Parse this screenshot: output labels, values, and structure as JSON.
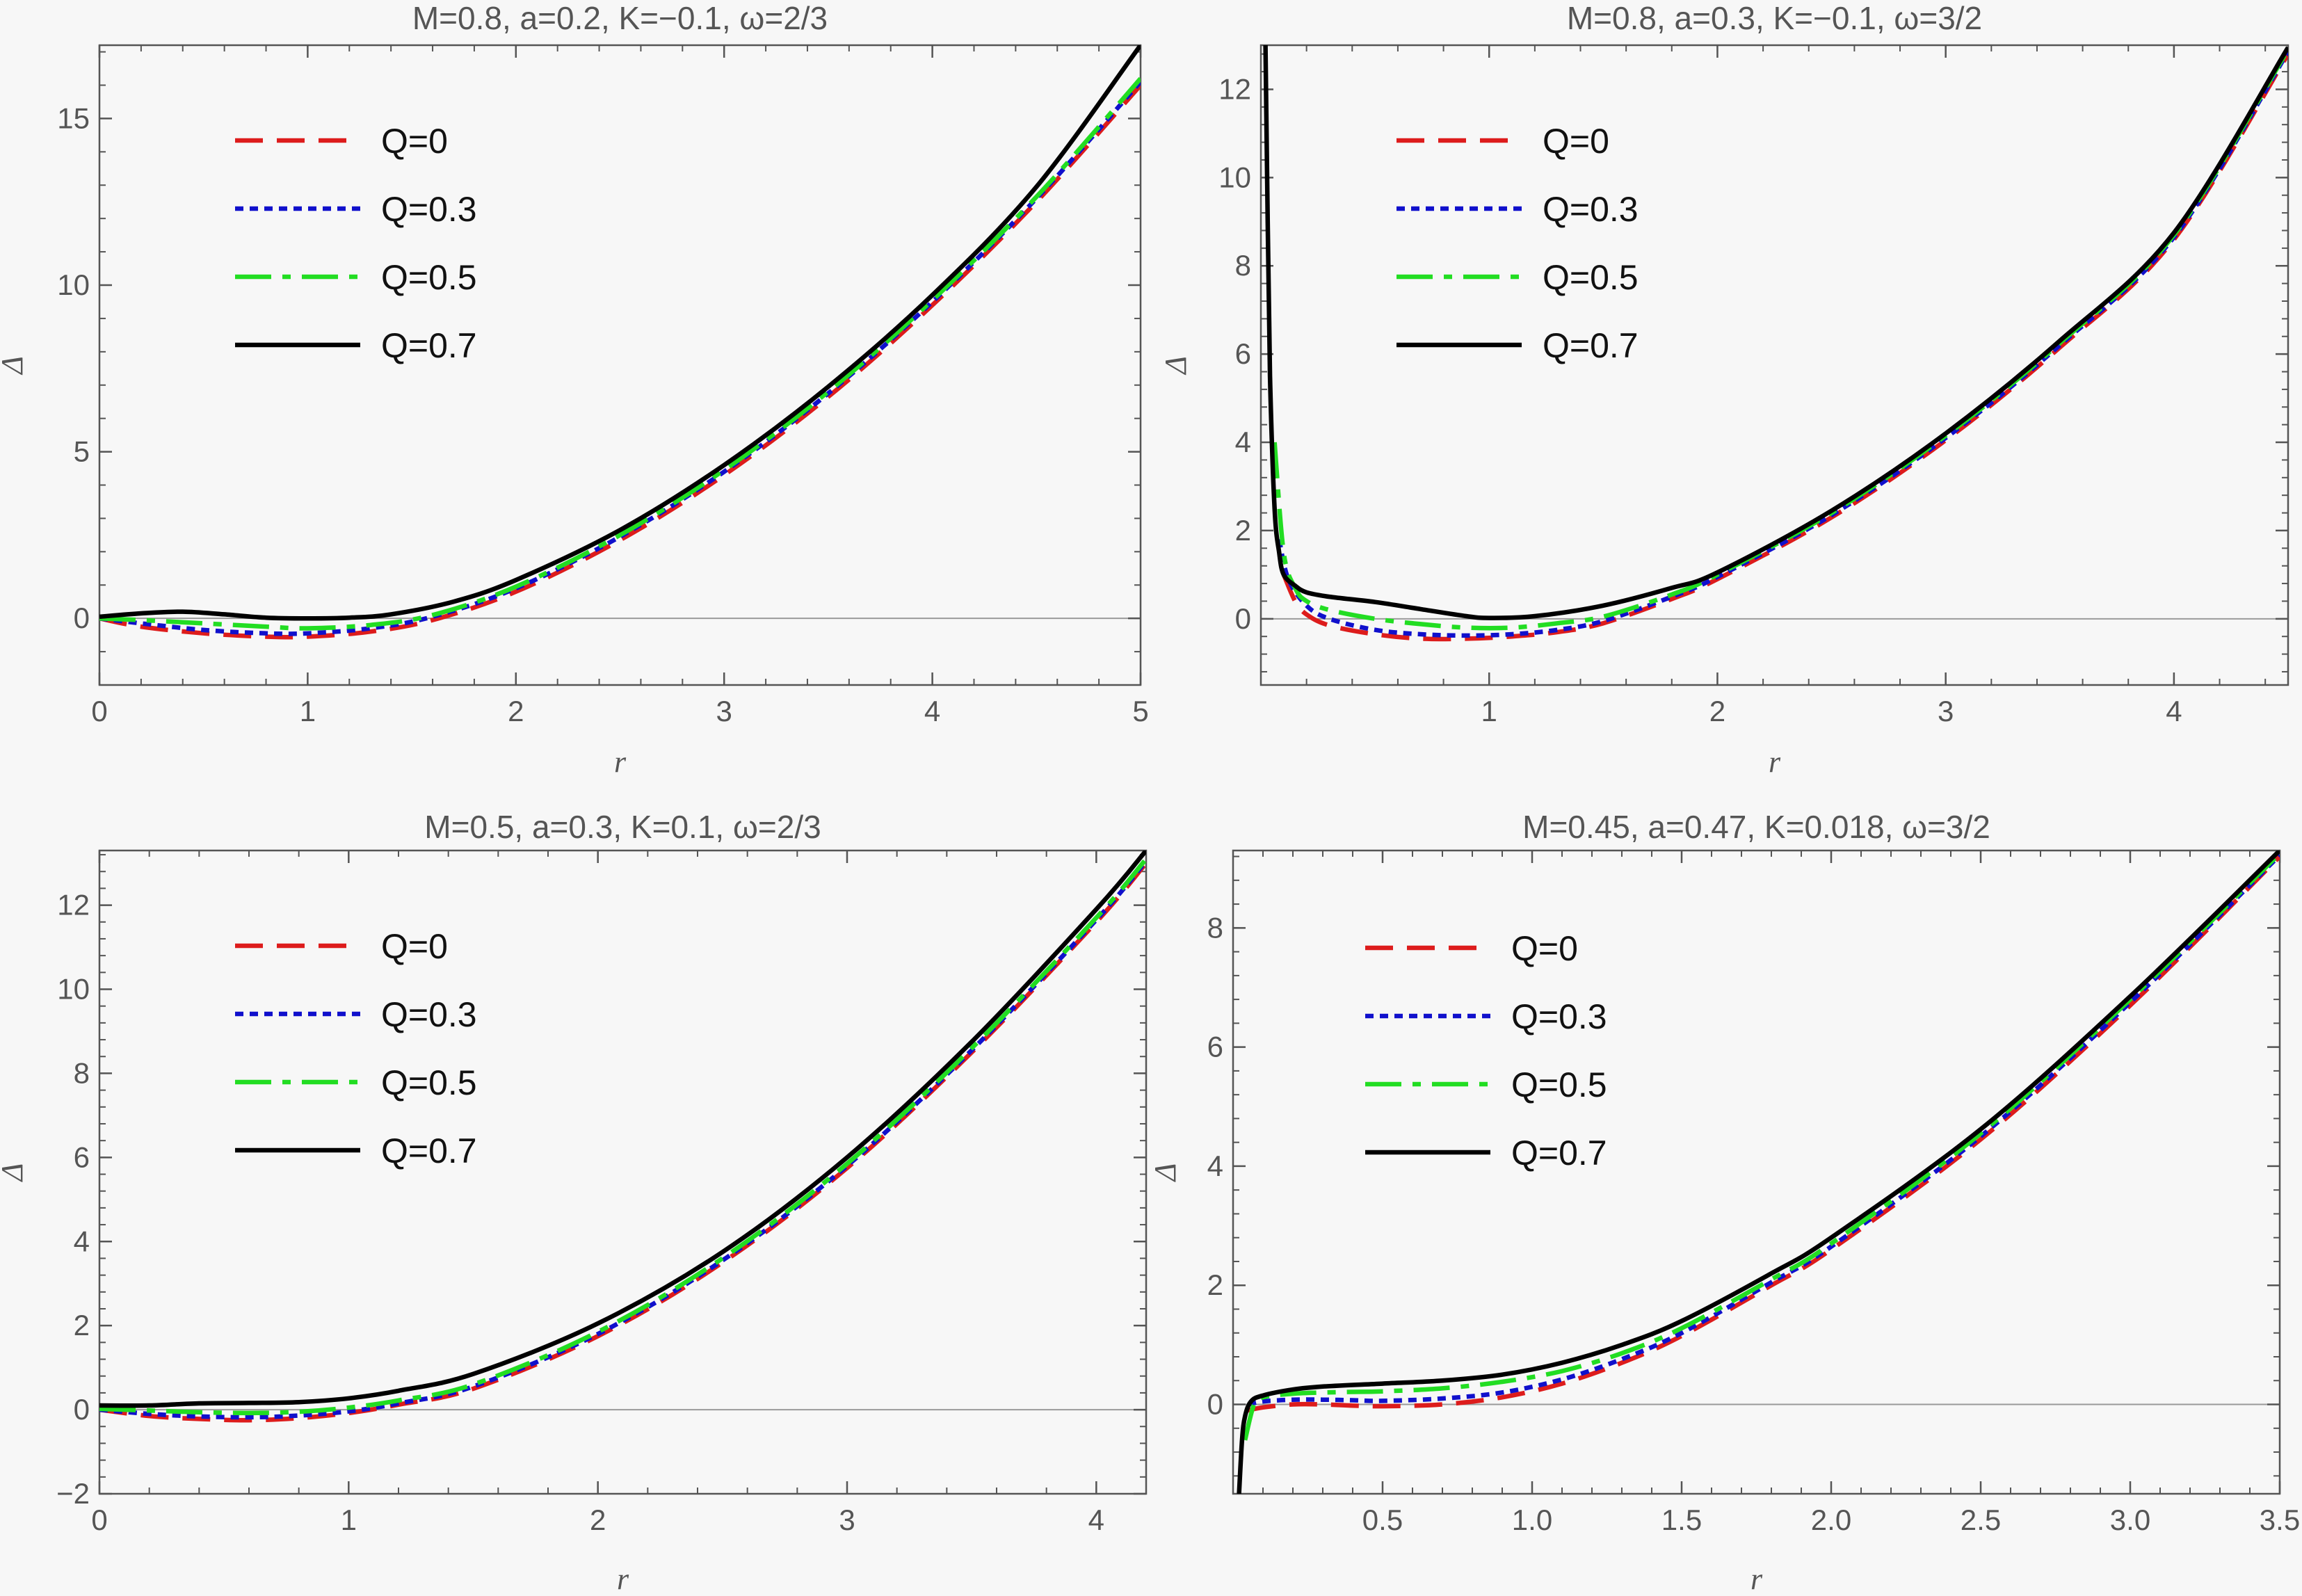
{
  "chart_data": [
    {
      "type": "line",
      "title": "M=0.8, a=0.2, K=−0.1, ω=2/3",
      "xlabel": "r",
      "ylabel": "Δ",
      "xlim": [
        0,
        5
      ],
      "ylim": [
        -2,
        17.2
      ],
      "xticks": [
        0,
        1,
        2,
        3,
        4,
        5
      ],
      "xtick_labels": [
        "0",
        "1",
        "2",
        "3",
        "4",
        "5"
      ],
      "yticks": [
        0,
        5,
        10,
        15
      ],
      "ytick_labels": [
        "0",
        "5",
        "10",
        "15"
      ],
      "legend_position": "top-left",
      "series": [
        {
          "name": "Q=0",
          "x": [
            0,
            0.2,
            0.5,
            0.8,
            1.0,
            1.3,
            1.6,
            2.0,
            2.5,
            3.0,
            3.5,
            4.0,
            4.5,
            5.0
          ],
          "values": [
            0,
            -0.25,
            -0.45,
            -0.55,
            -0.55,
            -0.4,
            -0.05,
            0.8,
            2.35,
            4.3,
            6.65,
            9.4,
            12.5,
            16.0
          ]
        },
        {
          "name": "Q=0.3",
          "x": [
            0,
            0.2,
            0.5,
            0.8,
            1.0,
            1.3,
            1.6,
            2.0,
            2.5,
            3.0,
            3.5,
            4.0,
            4.5,
            5.0
          ],
          "values": [
            0,
            -0.15,
            -0.35,
            -0.45,
            -0.45,
            -0.3,
            0.05,
            0.9,
            2.45,
            4.4,
            6.75,
            9.5,
            12.6,
            16.1
          ]
        },
        {
          "name": "Q=0.5",
          "x": [
            0,
            0.2,
            0.5,
            0.8,
            1.0,
            1.3,
            1.6,
            2.0,
            2.5,
            3.0,
            3.5,
            4.0,
            4.5,
            5.0
          ],
          "values": [
            0,
            -0.05,
            -0.15,
            -0.25,
            -0.3,
            -0.2,
            0.1,
            0.95,
            2.5,
            4.45,
            6.8,
            9.55,
            12.65,
            16.2
          ]
        },
        {
          "name": "Q=0.7",
          "x": [
            0,
            0.2,
            0.4,
            0.6,
            0.8,
            1.0,
            1.2,
            1.4,
            1.7,
            2.0,
            2.5,
            3.0,
            3.5,
            4.0,
            4.5,
            5.0
          ],
          "values": [
            0.05,
            0.15,
            0.2,
            0.12,
            0.02,
            0.0,
            0.02,
            0.12,
            0.5,
            1.15,
            2.65,
            4.6,
            6.95,
            9.7,
            12.95,
            17.2
          ]
        }
      ]
    },
    {
      "type": "line",
      "title": "M=0.8, a=0.3, K=−0.1, ω=3/2",
      "xlabel": "r",
      "ylabel": "Δ",
      "xlim": [
        0,
        4.5
      ],
      "ylim": [
        -1.5,
        13
      ],
      "xticks": [
        1,
        2,
        3,
        4
      ],
      "xtick_labels": [
        "1",
        "2",
        "3",
        "4"
      ],
      "yticks": [
        0,
        2,
        4,
        6,
        8,
        10,
        12
      ],
      "ytick_labels": [
        "0",
        "2",
        "4",
        "6",
        "8",
        "10",
        "12"
      ],
      "legend_position": "top-left",
      "series": [
        {
          "name": "Q=0",
          "x": [
            0.1,
            0.15,
            0.2,
            0.3,
            0.5,
            0.7,
            0.9,
            1.1,
            1.3,
            1.5,
            1.8,
            2.0,
            2.5,
            3.0,
            3.5,
            4.0,
            4.5
          ],
          "values": [
            1.0,
            0.4,
            0.1,
            -0.15,
            -0.35,
            -0.45,
            -0.45,
            -0.4,
            -0.3,
            -0.1,
            0.45,
            0.9,
            2.3,
            4.05,
            6.15,
            8.6,
            12.8
          ]
        },
        {
          "name": "Q=0.3",
          "x": [
            0.08,
            0.12,
            0.2,
            0.3,
            0.5,
            0.7,
            0.9,
            1.1,
            1.3,
            1.5,
            1.8,
            2.0,
            2.5,
            3.0,
            3.5,
            4.0,
            4.5
          ],
          "values": [
            1.8,
            0.9,
            0.3,
            0.0,
            -0.25,
            -0.35,
            -0.38,
            -0.35,
            -0.25,
            -0.05,
            0.5,
            0.95,
            2.35,
            4.1,
            6.2,
            8.65,
            12.85
          ]
        },
        {
          "name": "Q=0.5",
          "x": [
            0.06,
            0.1,
            0.15,
            0.2,
            0.3,
            0.5,
            0.7,
            0.9,
            1.1,
            1.3,
            1.5,
            1.8,
            2.0,
            2.5,
            3.0,
            3.5,
            4.0,
            4.5
          ],
          "values": [
            4.0,
            1.5,
            0.7,
            0.4,
            0.2,
            0.0,
            -0.12,
            -0.2,
            -0.2,
            -0.1,
            0.05,
            0.55,
            1.0,
            2.4,
            4.15,
            6.25,
            8.7,
            12.9
          ]
        },
        {
          "name": "Q=0.7",
          "x": [
            0.02,
            0.03,
            0.04,
            0.06,
            0.08,
            0.1,
            0.15,
            0.2,
            0.3,
            0.5,
            0.7,
            0.9,
            1.0,
            1.2,
            1.5,
            1.8,
            2.0,
            2.5,
            3.0,
            3.5,
            4.0,
            4.5
          ],
          "values": [
            13,
            9.0,
            5.5,
            2.5,
            1.5,
            1.0,
            0.75,
            0.6,
            0.5,
            0.38,
            0.22,
            0.06,
            0.02,
            0.06,
            0.3,
            0.7,
            1.05,
            2.45,
            4.2,
            6.3,
            8.75,
            12.95
          ]
        }
      ]
    },
    {
      "type": "line",
      "title": "M=0.5, a=0.3, K=0.1, ω=2/3",
      "xlabel": "r",
      "ylabel": "Δ",
      "xlim": [
        0,
        4.2
      ],
      "ylim": [
        -2,
        13.3
      ],
      "xticks": [
        0,
        1,
        2,
        3,
        4
      ],
      "xtick_labels": [
        "0",
        "1",
        "2",
        "3",
        "4"
      ],
      "yticks": [
        -2,
        0,
        2,
        4,
        6,
        8,
        10,
        12
      ],
      "ytick_labels": [
        "−2",
        "0",
        "2",
        "4",
        "6",
        "8",
        "10",
        "12"
      ],
      "legend_position": "top-left",
      "series": [
        {
          "name": "Q=0",
          "x": [
            0,
            0.2,
            0.4,
            0.6,
            0.8,
            1.0,
            1.2,
            1.5,
            2.0,
            2.5,
            3.0,
            3.5,
            4.0,
            4.2
          ],
          "values": [
            0.0,
            -0.15,
            -0.22,
            -0.25,
            -0.2,
            -0.08,
            0.12,
            0.5,
            1.75,
            3.5,
            5.75,
            8.5,
            11.6,
            13.0
          ]
        },
        {
          "name": "Q=0.3",
          "x": [
            0,
            0.2,
            0.4,
            0.6,
            0.8,
            1.0,
            1.2,
            1.5,
            2.0,
            2.5,
            3.0,
            3.5,
            4.0,
            4.2
          ],
          "values": [
            0.0,
            -0.1,
            -0.16,
            -0.18,
            -0.14,
            -0.04,
            0.15,
            0.55,
            1.8,
            3.55,
            5.8,
            8.55,
            11.65,
            13.05
          ]
        },
        {
          "name": "Q=0.5",
          "x": [
            0,
            0.2,
            0.4,
            0.6,
            0.8,
            1.0,
            1.2,
            1.5,
            2.0,
            2.5,
            3.0,
            3.5,
            4.0,
            4.2
          ],
          "values": [
            0.02,
            -0.02,
            -0.06,
            -0.08,
            -0.05,
            0.05,
            0.22,
            0.6,
            1.85,
            3.6,
            5.85,
            8.6,
            11.7,
            13.1
          ]
        },
        {
          "name": "Q=0.7",
          "x": [
            0,
            0.2,
            0.4,
            0.6,
            0.8,
            1.0,
            1.2,
            1.5,
            2.0,
            2.5,
            3.0,
            3.5,
            4.0,
            4.2
          ],
          "values": [
            0.1,
            0.1,
            0.15,
            0.16,
            0.18,
            0.27,
            0.45,
            0.85,
            2.05,
            3.75,
            6.0,
            8.75,
            11.9,
            13.3
          ]
        }
      ]
    },
    {
      "type": "line",
      "title": "M=0.45, a=0.47, K=0.018, ω=3/2",
      "xlabel": "r",
      "ylabel": "Δ",
      "xlim": [
        0,
        3.5
      ],
      "ylim": [
        -1.5,
        9.3
      ],
      "xticks": [
        0.5,
        1.0,
        1.5,
        2.0,
        2.5,
        3.0,
        3.5
      ],
      "xtick_labels": [
        "0.5",
        "1.0",
        "1.5",
        "2.0",
        "2.5",
        "3.0",
        "3.5"
      ],
      "yticks": [
        0,
        2,
        4,
        6,
        8
      ],
      "ytick_labels": [
        "0",
        "2",
        "4",
        "6",
        "8"
      ],
      "legend_position": "top-left",
      "series": [
        {
          "name": "Q=0",
          "x": [
            0.05,
            0.1,
            0.2,
            0.3,
            0.4,
            0.5,
            0.7,
            0.9,
            1.1,
            1.3,
            1.5,
            1.8,
            2.0,
            2.5,
            3.0,
            3.5
          ],
          "values": [
            -0.1,
            -0.05,
            0.0,
            0.0,
            -0.02,
            -0.03,
            0.0,
            0.12,
            0.35,
            0.7,
            1.15,
            2.0,
            2.6,
            4.45,
            6.7,
            9.2
          ]
        },
        {
          "name": "Q=0.3",
          "x": [
            0.05,
            0.1,
            0.2,
            0.3,
            0.4,
            0.5,
            0.7,
            0.9,
            1.1,
            1.3,
            1.5,
            1.8,
            2.0,
            2.5,
            3.0,
            3.5
          ],
          "values": [
            0.0,
            0.05,
            0.08,
            0.08,
            0.07,
            0.06,
            0.1,
            0.2,
            0.42,
            0.76,
            1.2,
            2.05,
            2.65,
            4.5,
            6.75,
            9.22
          ]
        },
        {
          "name": "Q=0.5",
          "x": [
            0.04,
            0.07,
            0.1,
            0.2,
            0.3,
            0.4,
            0.5,
            0.7,
            0.9,
            1.1,
            1.3,
            1.5,
            1.8,
            2.0,
            2.5,
            3.0,
            3.5
          ],
          "values": [
            -0.6,
            0.0,
            0.12,
            0.18,
            0.2,
            0.21,
            0.22,
            0.27,
            0.38,
            0.56,
            0.86,
            1.28,
            2.1,
            2.7,
            4.55,
            6.8,
            9.25
          ]
        },
        {
          "name": "Q=0.7",
          "x": [
            0.02,
            0.03,
            0.04,
            0.06,
            0.1,
            0.2,
            0.3,
            0.5,
            0.7,
            0.9,
            1.1,
            1.3,
            1.5,
            1.8,
            2.0,
            2.5,
            3.0,
            3.5
          ],
          "values": [
            -1.5,
            -0.6,
            -0.2,
            0.05,
            0.15,
            0.25,
            0.3,
            0.35,
            0.4,
            0.5,
            0.7,
            1.0,
            1.4,
            2.2,
            2.8,
            4.62,
            6.85,
            9.3
          ]
        }
      ]
    }
  ],
  "legend_styles": [
    {
      "color": "#dd1c1c",
      "dash": "dashed"
    },
    {
      "color": "#1010cc",
      "dash": "dotted"
    },
    {
      "color": "#22dd22",
      "dash": "long-dash-dot"
    },
    {
      "color": "#000000",
      "dash": "solid"
    }
  ],
  "frame_color": "#555555",
  "background": "#f7f7f7"
}
